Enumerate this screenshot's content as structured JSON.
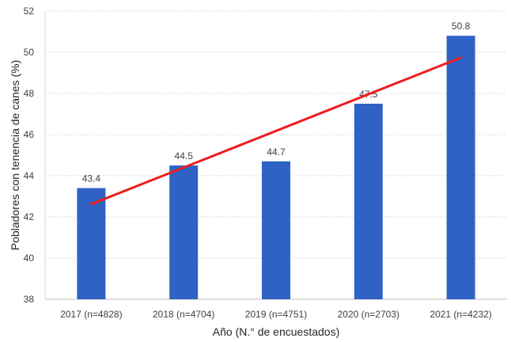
{
  "chart_data": {
    "type": "bar",
    "categories": [
      "2017 (n=4828)",
      "2018 (n=4704)",
      "2019 (n=4751)",
      "2020 (n=2703)",
      "2021 (n=4232)"
    ],
    "values": [
      43.4,
      44.5,
      44.7,
      47.5,
      50.8
    ],
    "data_labels": [
      "43.4",
      "44.5",
      "44.7",
      "47.5",
      "50.8"
    ],
    "xlabel": "Año (N.° de encuestados)",
    "ylabel": "Pobladores con tenencia de canes (%)",
    "ylim": [
      38,
      52
    ],
    "yticks": [
      38,
      40,
      42,
      44,
      46,
      48,
      50,
      52
    ],
    "grid": true,
    "bar_color": "#2f62c4",
    "trendline": {
      "type": "linear",
      "color": "#ee1c1c"
    }
  }
}
